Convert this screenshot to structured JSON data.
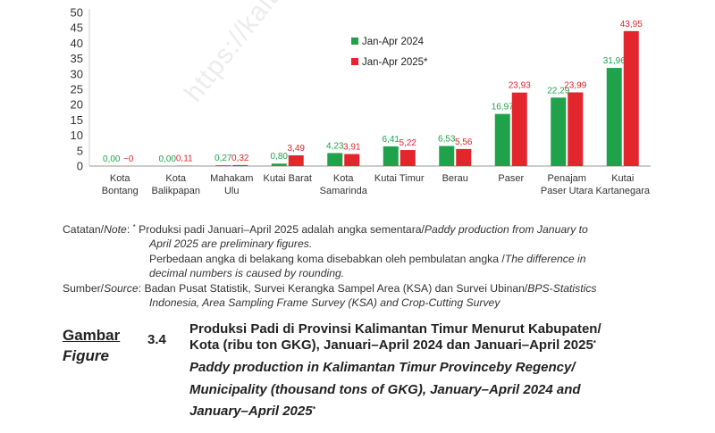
{
  "watermark": "https://kaltim.bps.go.id",
  "chart_data": {
    "type": "bar",
    "categories": [
      "Kota Bontang",
      "Kota Balikpapan",
      "Mahakam Ulu",
      "Kutai Barat",
      "Kota Samarinda",
      "Kutai Timur",
      "Berau",
      "Paser",
      "Penajam Paser Utara",
      "Kutai Kartanegara"
    ],
    "series": [
      {
        "name": "Jan-Apr 2024",
        "color": "#1fa24a",
        "values": [
          0.0,
          0.0,
          0.27,
          0.8,
          4.23,
          6.41,
          6.53,
          16.97,
          22.29,
          31.96
        ],
        "labels": [
          "0,00",
          "0,00",
          "0,27",
          "0,80",
          "4,23",
          "6,41",
          "6,53",
          "16,97",
          "22,29",
          "31,96"
        ]
      },
      {
        "name": "Jan-Apr 2025*",
        "color": "#e3262d",
        "values": [
          0.0,
          0.11,
          0.32,
          3.49,
          3.91,
          5.22,
          5.56,
          23.93,
          23.99,
          43.95
        ],
        "labels": [
          "~0",
          "0,11",
          "0,32",
          "3,49",
          "3,91",
          "5,22",
          "5,56",
          "23,93",
          "23,99",
          "43,95"
        ]
      }
    ],
    "ylim": [
      0,
      50
    ],
    "yticks": [
      0,
      5,
      10,
      15,
      20,
      25,
      30,
      35,
      40,
      45,
      50
    ],
    "legend_position": "top-center",
    "grid": false
  },
  "notes": {
    "label_prefix": "Catatan/",
    "label_italic": "Note",
    "label_suffix": ":",
    "marker": "*",
    "line1_text": "Produksi padi Januari–April 2025 adalah angka sementara/",
    "line1_italic": "Paddy production from January to",
    "line2_italic": "April 2025 are preliminary figures.",
    "line3_text": "Perbedaan angka di belakang koma disebabkan oleh pembulatan angka /",
    "line3_italic": "The difference in",
    "line4_italic": "decimal numbers is caused by rounding."
  },
  "source": {
    "prefix": "Sumber/",
    "italic": "Source",
    "suffix": ":",
    "line1_text": "Badan Pusat Statistik, Survei Kerangka Sampel Area (KSA) dan Survei Ubinan/",
    "line1_italic": "BPS-Statistics",
    "line2_italic": "Indonesia, Area Sampling Frame Survey (KSA) and Crop-Cutting Survey"
  },
  "figure": {
    "label_id": "Gambar",
    "label_en": "Figure",
    "number": "3.4",
    "title_line1": "Produksi Padi di Provinsi Kalimantan Timur Menurut Kabupaten/",
    "title_line2": "Kota (ribu ton GKG), Januari–April 2024 dan Januari–April 2025",
    "title_marker": "*",
    "title_en_line1": "Paddy production in Kalimantan Timur Provinceby Regency/",
    "title_en_line2": "Municipality (thousand tons of GKG), January–April 2024 and",
    "title_en_line3": "January–April 2025",
    "title_en_marker": "*"
  }
}
